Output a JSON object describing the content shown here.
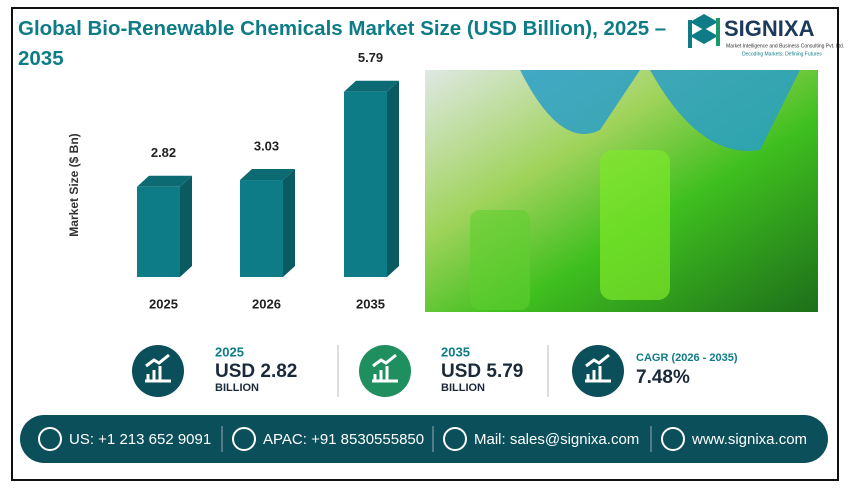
{
  "chart_data": {
    "type": "bar",
    "title": "Global Bio-Renewable Chemicals Market Size (USD Billion), 2025 – 2035",
    "y_label": "Market Size ($ Bn)",
    "categories": [
      "2025",
      "2026",
      "2035"
    ],
    "values": [
      2.82,
      3.03,
      5.79
    ],
    "color": "#0e7c86"
  },
  "logo": {
    "name": "SIGNIXA",
    "tagline": "Market Intelligence and Business Consulting Pvt. Ltd.",
    "motto": "Decoding Markets, Defining Futures"
  },
  "highlights": [
    {
      "label": "2025",
      "value": "USD 2.82",
      "unit": "BILLION"
    },
    {
      "label": "2035",
      "value": "USD 5.79",
      "unit": "BILLION"
    },
    {
      "label": "CAGR (2026 - 2035)",
      "value": "7.48%"
    }
  ],
  "contacts": [
    "US: +1 213 652 9091",
    "APAC: +91 8530555850",
    "Mail: sales@signixa.com",
    "www.signixa.com"
  ]
}
